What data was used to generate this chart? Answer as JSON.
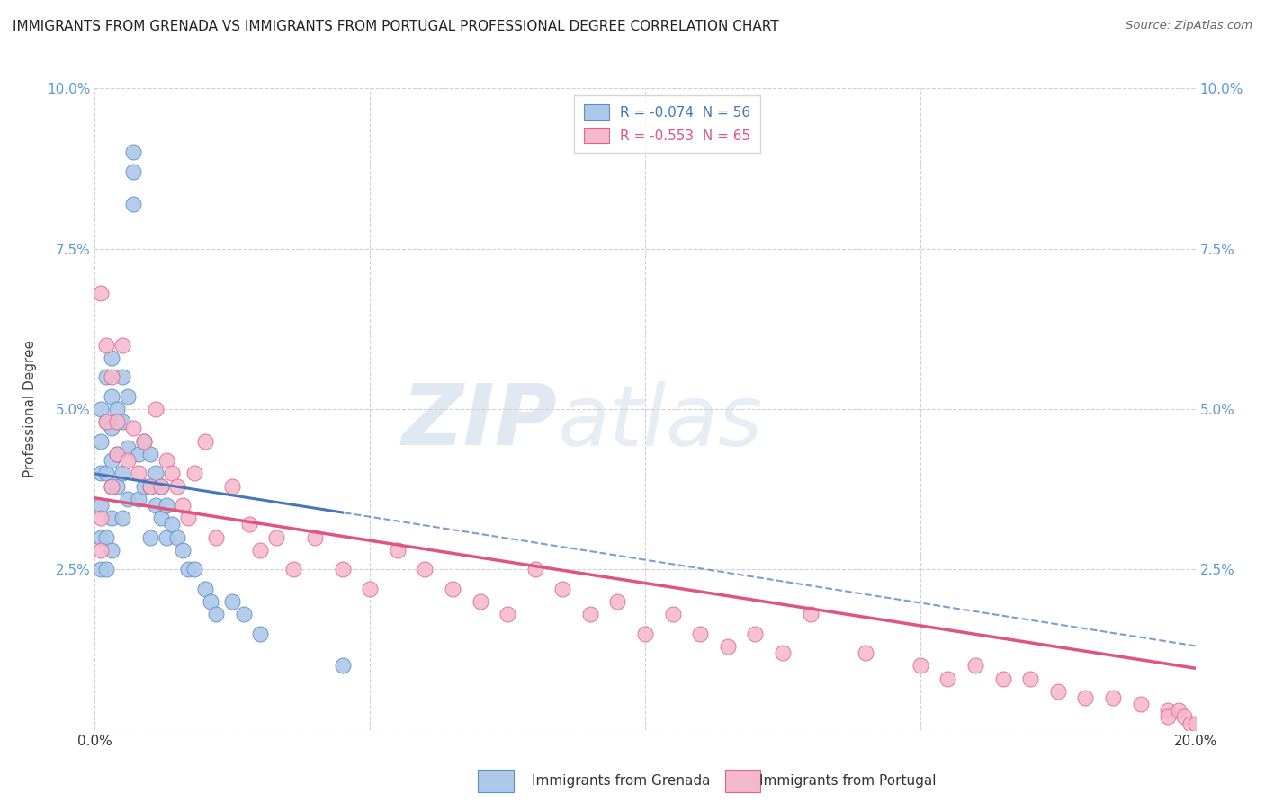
{
  "title": "IMMIGRANTS FROM GRENADA VS IMMIGRANTS FROM PORTUGAL PROFESSIONAL DEGREE CORRELATION CHART",
  "source": "Source: ZipAtlas.com",
  "ylabel": "Professional Degree",
  "legend_bottom": [
    "Immigrants from Grenada",
    "Immigrants from Portugal"
  ],
  "series1_label": "R = -0.074  N = 56",
  "series2_label": "R = -0.553  N = 65",
  "series1_color": "#adc8e8",
  "series2_color": "#f5b8cc",
  "series1_edge_color": "#5b8fc9",
  "series2_edge_color": "#e06090",
  "series1_line_color": "#4477bb",
  "series2_line_color": "#e05580",
  "xlim": [
    0,
    0.2
  ],
  "ylim": [
    0,
    0.1
  ],
  "xticks": [
    0.0,
    0.05,
    0.1,
    0.15,
    0.2
  ],
  "yticks": [
    0.0,
    0.025,
    0.05,
    0.075,
    0.1
  ],
  "grenada_x": [
    0.001,
    0.001,
    0.001,
    0.001,
    0.001,
    0.001,
    0.002,
    0.002,
    0.002,
    0.002,
    0.002,
    0.003,
    0.003,
    0.003,
    0.003,
    0.003,
    0.003,
    0.003,
    0.004,
    0.004,
    0.004,
    0.005,
    0.005,
    0.005,
    0.005,
    0.006,
    0.006,
    0.006,
    0.007,
    0.007,
    0.007,
    0.008,
    0.008,
    0.009,
    0.009,
    0.01,
    0.01,
    0.01,
    0.011,
    0.011,
    0.012,
    0.012,
    0.013,
    0.013,
    0.014,
    0.015,
    0.016,
    0.017,
    0.018,
    0.02,
    0.021,
    0.022,
    0.025,
    0.027,
    0.03,
    0.045
  ],
  "grenada_y": [
    0.05,
    0.045,
    0.04,
    0.035,
    0.03,
    0.025,
    0.055,
    0.048,
    0.04,
    0.03,
    0.025,
    0.058,
    0.052,
    0.047,
    0.042,
    0.038,
    0.033,
    0.028,
    0.05,
    0.043,
    0.038,
    0.055,
    0.048,
    0.04,
    0.033,
    0.052,
    0.044,
    0.036,
    0.09,
    0.087,
    0.082,
    0.043,
    0.036,
    0.045,
    0.038,
    0.043,
    0.038,
    0.03,
    0.04,
    0.035,
    0.038,
    0.033,
    0.035,
    0.03,
    0.032,
    0.03,
    0.028,
    0.025,
    0.025,
    0.022,
    0.02,
    0.018,
    0.02,
    0.018,
    0.015,
    0.01
  ],
  "portugal_x": [
    0.001,
    0.001,
    0.001,
    0.002,
    0.002,
    0.003,
    0.003,
    0.004,
    0.004,
    0.005,
    0.006,
    0.007,
    0.008,
    0.009,
    0.01,
    0.011,
    0.012,
    0.013,
    0.014,
    0.015,
    0.016,
    0.017,
    0.018,
    0.02,
    0.022,
    0.025,
    0.028,
    0.03,
    0.033,
    0.036,
    0.04,
    0.045,
    0.05,
    0.055,
    0.06,
    0.065,
    0.07,
    0.075,
    0.08,
    0.085,
    0.09,
    0.095,
    0.1,
    0.105,
    0.11,
    0.115,
    0.12,
    0.125,
    0.13,
    0.14,
    0.15,
    0.155,
    0.16,
    0.165,
    0.17,
    0.175,
    0.18,
    0.185,
    0.19,
    0.195,
    0.195,
    0.197,
    0.198,
    0.199,
    0.2
  ],
  "portugal_y": [
    0.033,
    0.028,
    0.068,
    0.048,
    0.06,
    0.038,
    0.055,
    0.048,
    0.043,
    0.06,
    0.042,
    0.047,
    0.04,
    0.045,
    0.038,
    0.05,
    0.038,
    0.042,
    0.04,
    0.038,
    0.035,
    0.033,
    0.04,
    0.045,
    0.03,
    0.038,
    0.032,
    0.028,
    0.03,
    0.025,
    0.03,
    0.025,
    0.022,
    0.028,
    0.025,
    0.022,
    0.02,
    0.018,
    0.025,
    0.022,
    0.018,
    0.02,
    0.015,
    0.018,
    0.015,
    0.013,
    0.015,
    0.012,
    0.018,
    0.012,
    0.01,
    0.008,
    0.01,
    0.008,
    0.008,
    0.006,
    0.005,
    0.005,
    0.004,
    0.003,
    0.002,
    0.003,
    0.002,
    0.001,
    0.001
  ],
  "watermark_zip": "ZIP",
  "watermark_atlas": "atlas",
  "background_color": "#ffffff",
  "grid_color": "#d0d0d0"
}
